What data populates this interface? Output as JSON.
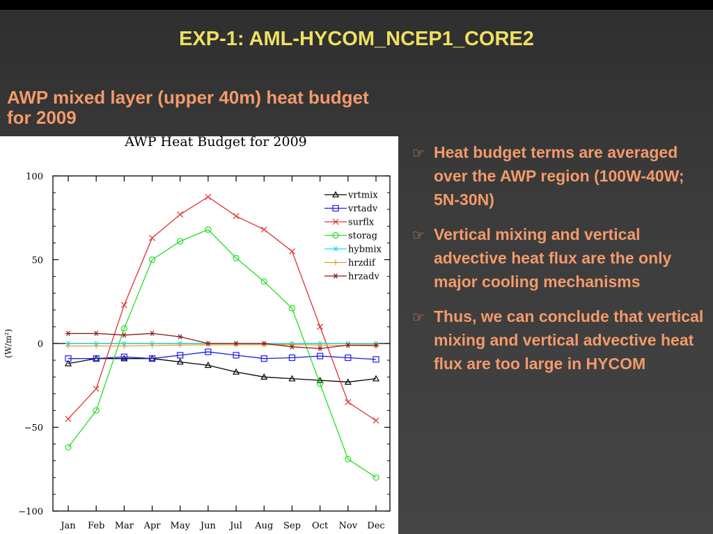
{
  "slide": {
    "title": "EXP-1: AML-HYCOM_NCEP1_CORE2",
    "subtitle": "AWP mixed layer (upper 40m) heat budget for 2009"
  },
  "bullets": [
    {
      "icon": "pointing-hand-icon",
      "text": "Heat budget terms are averaged over the AWP region (100W-40W; 5N-30N)"
    },
    {
      "icon": "pointing-hand-icon",
      "text": "Vertical mixing and vertical advective heat flux are the only major cooling mechanisms"
    },
    {
      "icon": "pointing-hand-icon",
      "text": "Thus, we can conclude that vertical mixing and vertical advective heat flux are too large in HYCOM"
    }
  ],
  "chart_data": {
    "type": "line",
    "title": "AWP Heat Budget for 2009",
    "xlabel": "",
    "ylabel": "(W/m²)",
    "categories": [
      "Jan",
      "Feb",
      "Mar",
      "Apr",
      "May",
      "Jun",
      "Jul",
      "Aug",
      "Sep",
      "Oct",
      "Nov",
      "Dec"
    ],
    "ylim": [
      -100,
      100
    ],
    "yticks": [
      -100,
      -50,
      0,
      50,
      100
    ],
    "ytick_labels": [
      "−100",
      "−50",
      "0",
      "50",
      "100"
    ],
    "zero_line": true,
    "grid": false,
    "legend_position": "top-right",
    "series": [
      {
        "name": "vrtmix",
        "color": "#000000",
        "marker": "triangle",
        "values": [
          -12,
          -9,
          -9,
          -9,
          -11,
          -13,
          -17,
          -20,
          -21,
          -22,
          -23,
          -21
        ]
      },
      {
        "name": "vrtadv",
        "color": "#1a1ae6",
        "marker": "square",
        "values": [
          -9,
          -9,
          -8,
          -9,
          -7,
          -5,
          -7,
          -9,
          -8.5,
          -7.5,
          -8.5,
          -9.5
        ]
      },
      {
        "name": "surflx",
        "color": "#e03030",
        "marker": "x",
        "values": [
          -45,
          -27,
          23,
          63,
          77,
          87.5,
          76,
          68,
          55,
          10,
          -35,
          -46
        ]
      },
      {
        "name": "storag",
        "color": "#22dd22",
        "marker": "circle",
        "values": [
          -62,
          -40,
          9,
          50,
          61,
          68,
          51,
          37,
          21,
          -24,
          -69,
          -80
        ]
      },
      {
        "name": "hybmix",
        "color": "#22dddd",
        "marker": "asterisk",
        "values": [
          0,
          0,
          0,
          0,
          0,
          0,
          0,
          0,
          0,
          0,
          0,
          0
        ]
      },
      {
        "name": "hrzdif",
        "color": "#e0a030",
        "marker": "plus",
        "values": [
          -1.5,
          -1.5,
          -1.5,
          -1.2,
          -1,
          -0.8,
          -0.8,
          -0.7,
          -0.7,
          -1,
          -1.2,
          -1.5
        ]
      },
      {
        "name": "hrzadv",
        "color": "#8b1a1a",
        "marker": "star",
        "values": [
          6,
          6,
          5,
          6,
          4,
          0,
          0,
          0,
          -2,
          -3,
          -1,
          -1
        ]
      }
    ]
  }
}
